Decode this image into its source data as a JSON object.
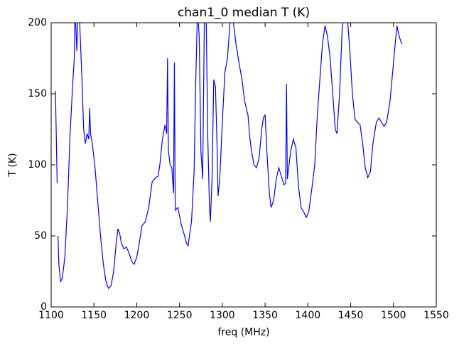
{
  "chart_data": {
    "type": "line",
    "title": "chan1_0 median T (K)",
    "x_label": "freq (MHz)",
    "y_label": "T (K)",
    "series": [
      {
        "color": "#0000ff",
        "x": [
          1105,
          1106,
          1107,
          1107,
          1108,
          1109,
          1111,
          1113,
          1116,
          1119,
          1122,
          1125,
          1127,
          1128,
          1130,
          1131,
          1132,
          1134,
          1136,
          1138,
          1140,
          1142,
          1144,
          1145,
          1146,
          1148,
          1151,
          1155,
          1158,
          1161,
          1164,
          1167,
          1170,
          1173,
          1176,
          1178,
          1180,
          1182,
          1185,
          1188,
          1191,
          1194,
          1197,
          1200,
          1203,
          1206,
          1210,
          1214,
          1218,
          1222,
          1225,
          1227,
          1230,
          1233,
          1235,
          1236,
          1237,
          1239,
          1241,
          1243,
          1244,
          1245,
          1248,
          1252,
          1255,
          1258,
          1260,
          1262,
          1264,
          1267,
          1269,
          1271,
          1273,
          1275,
          1277,
          1279,
          1281,
          1283,
          1285,
          1286,
          1288,
          1290,
          1292,
          1294,
          1295,
          1297,
          1300,
          1303,
          1306,
          1309,
          1312,
          1316,
          1320,
          1323,
          1326,
          1328,
          1330,
          1332,
          1334,
          1337,
          1340,
          1343,
          1346,
          1348,
          1350,
          1352,
          1355,
          1357,
          1360,
          1363,
          1366,
          1369,
          1372,
          1374,
          1375,
          1376,
          1377,
          1380,
          1383,
          1386,
          1389,
          1392,
          1395,
          1398,
          1401,
          1405,
          1408,
          1411,
          1414,
          1417,
          1420,
          1423,
          1426,
          1429,
          1432,
          1434,
          1437,
          1440,
          1443,
          1446,
          1449,
          1452,
          1455,
          1458,
          1461,
          1464,
          1467,
          1470,
          1473,
          1476,
          1480,
          1483,
          1486,
          1489,
          1492,
          1496,
          1499,
          1502,
          1504,
          1506,
          1508,
          1510
        ],
        "values": [
          152,
          120,
          87,
          null,
          50,
          30,
          18,
          20,
          35,
          70,
          120,
          155,
          175,
          210,
          180,
          200,
          220,
          190,
          160,
          125,
          115,
          122,
          118,
          140,
          122,
          115,
          100,
          70,
          48,
          30,
          18,
          13,
          15,
          25,
          45,
          55,
          52,
          45,
          41,
          42,
          38,
          32,
          30,
          35,
          45,
          57,
          60,
          70,
          88,
          91,
          92,
          100,
          118,
          128,
          122,
          175,
          110,
          100,
          98,
          80,
          172,
          68,
          70,
          58,
          52,
          45,
          43,
          52,
          60,
          95,
          160,
          210,
          190,
          110,
          90,
          200,
          210,
          120,
          70,
          60,
          90,
          160,
          155,
          110,
          78,
          90,
          130,
          165,
          175,
          200,
          205,
          185,
          170,
          160,
          145,
          140,
          135,
          120,
          110,
          100,
          98,
          105,
          125,
          133,
          135,
          110,
          80,
          70,
          75,
          90,
          98,
          92,
          86,
          87,
          157,
          90,
          95,
          110,
          118,
          112,
          85,
          70,
          67,
          63,
          67,
          85,
          100,
          135,
          160,
          185,
          198,
          190,
          175,
          150,
          125,
          122,
          150,
          195,
          210,
          205,
          180,
          150,
          132,
          130,
          128,
          115,
          98,
          91,
          95,
          115,
          130,
          133,
          130,
          127,
          130,
          145,
          165,
          185,
          198,
          192,
          188,
          185
        ]
      }
    ],
    "xlim": [
      1100,
      1550
    ],
    "xticks": [
      1100,
      1150,
      1200,
      1250,
      1300,
      1350,
      1400,
      1450,
      1500,
      1550
    ],
    "ylim": [
      0,
      200
    ],
    "yticks": [
      0,
      50,
      100,
      150,
      200
    ],
    "grid": false
  }
}
